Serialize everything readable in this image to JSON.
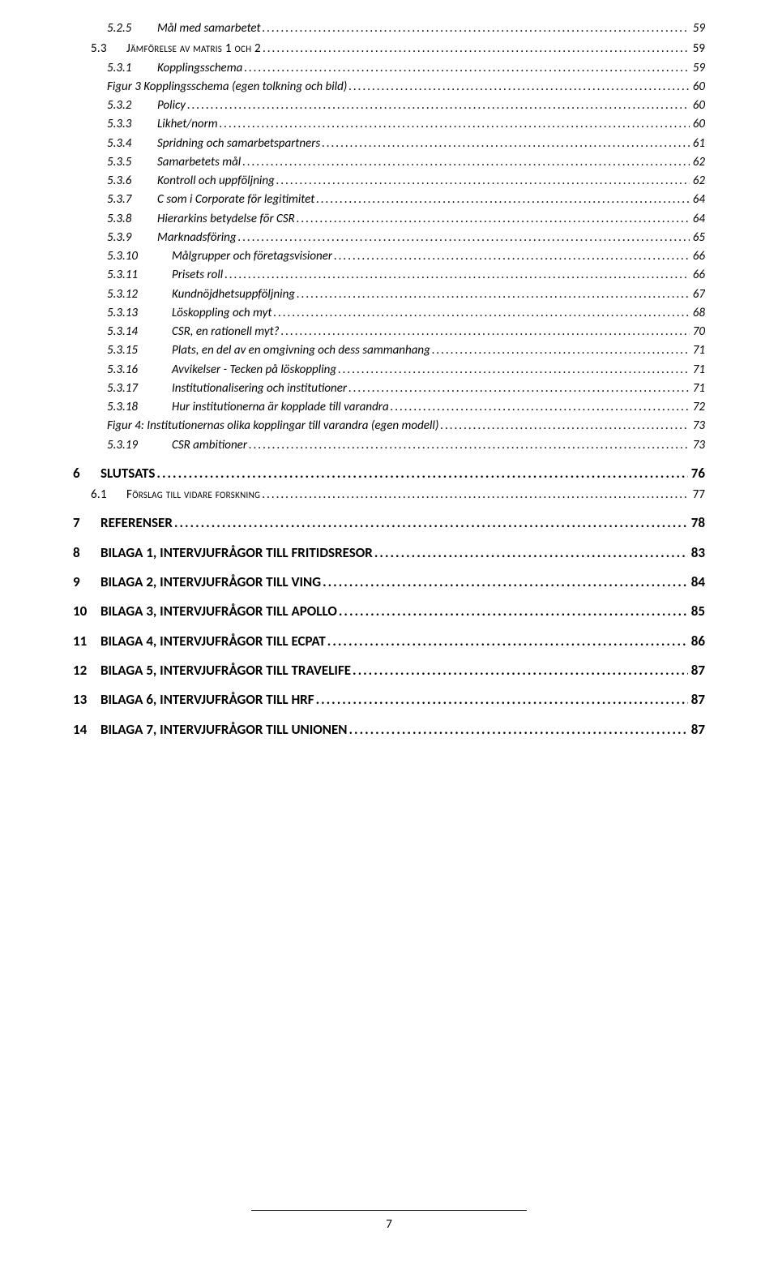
{
  "page_number": "7",
  "entries": [
    {
      "cls": "lvl3",
      "num": "5.2.5",
      "text": "Mål med samarbetet",
      "page": "59"
    },
    {
      "cls": "lvl2",
      "num": "5.3",
      "text": "Jämförelse av matris 1 och 2",
      "page": "59"
    },
    {
      "cls": "lvl3",
      "num": "5.3.1",
      "text": "Kopplingsschema",
      "page": "59"
    },
    {
      "cls": "fig",
      "num": "",
      "text": "Figur 3 Kopplingsschema (egen tolkning och bild)",
      "page": "60"
    },
    {
      "cls": "lvl3",
      "num": "5.3.2",
      "text": "Policy",
      "page": "60"
    },
    {
      "cls": "lvl3",
      "num": "5.3.3",
      "text": "Likhet/norm",
      "page": "60"
    },
    {
      "cls": "lvl3",
      "num": "5.3.4",
      "text": "Spridning och samarbetspartners",
      "page": "61"
    },
    {
      "cls": "lvl3",
      "num": "5.3.5",
      "text": "Samarbetets mål",
      "page": "62"
    },
    {
      "cls": "lvl3",
      "num": "5.3.6",
      "text": "Kontroll och uppföljning",
      "page": "62"
    },
    {
      "cls": "lvl3",
      "num": "5.3.7",
      "text": "C som i Corporate för legitimitet",
      "page": "64"
    },
    {
      "cls": "lvl3",
      "num": "5.3.8",
      "text": "Hierarkins betydelse för CSR",
      "page": "64"
    },
    {
      "cls": "lvl3",
      "num": "5.3.9",
      "text": "Marknadsföring",
      "page": "65"
    },
    {
      "cls": "lvl3wide",
      "num": "5.3.10",
      "text": "Målgrupper och företagsvisioner",
      "page": "66"
    },
    {
      "cls": "lvl3wide",
      "num": "5.3.11",
      "text": "Prisets roll",
      "page": "66"
    },
    {
      "cls": "lvl3wide",
      "num": "5.3.12",
      "text": "Kundnöjdhetsuppföljning",
      "page": "67"
    },
    {
      "cls": "lvl3wide",
      "num": "5.3.13",
      "text": "Löskoppling och myt",
      "page": "68"
    },
    {
      "cls": "lvl3wide",
      "num": "5.3.14",
      "text": "CSR, en rationell myt?",
      "page": "70"
    },
    {
      "cls": "lvl3wide",
      "num": "5.3.15",
      "text": "Plats, en del av en omgivning och dess sammanhang",
      "page": "71"
    },
    {
      "cls": "lvl3wide",
      "num": "5.3.16",
      "text": "Avvikelser - Tecken på löskoppling",
      "page": "71"
    },
    {
      "cls": "lvl3wide",
      "num": "5.3.17",
      "text": "Institutionalisering och institutioner",
      "page": "71"
    },
    {
      "cls": "lvl3wide",
      "num": "5.3.18",
      "text": "Hur institutionerna är kopplade till varandra",
      "page": "72"
    },
    {
      "cls": "fig",
      "num": "",
      "text": "Figur 4: Institutionernas olika kopplingar till varandra (egen modell)",
      "page": "73"
    },
    {
      "cls": "lvl3wide",
      "num": "5.3.19",
      "text": "CSR ambitioner",
      "page": "73"
    },
    {
      "cls": "lvl1",
      "num": "6",
      "text": "SLUTSATS",
      "page": "76"
    },
    {
      "cls": "lvl2",
      "num": "6.1",
      "text": "Förslag till vidare forskning",
      "page": "77"
    },
    {
      "cls": "lvl1",
      "num": "7",
      "text": "REFERENSER",
      "page": "78"
    },
    {
      "cls": "lvl1",
      "num": "8",
      "text": "BILAGA 1, INTERVJUFRÅGOR TILL FRITIDSRESOR",
      "page": "83"
    },
    {
      "cls": "lvl1",
      "num": "9",
      "text": "BILAGA 2, INTERVJUFRÅGOR TILL VING",
      "page": "84"
    },
    {
      "cls": "lvl1",
      "num": "10",
      "text": "BILAGA 3, INTERVJUFRÅGOR TILL APOLLO",
      "page": "85"
    },
    {
      "cls": "lvl1",
      "num": "11",
      "text": "BILAGA 4, INTERVJUFRÅGOR TILL ECPAT",
      "page": "86"
    },
    {
      "cls": "lvl1",
      "num": "12",
      "text": "BILAGA 5, INTERVJUFRÅGOR TILL TRAVELIFE",
      "page": "87"
    },
    {
      "cls": "lvl1",
      "num": "13",
      "text": "BILAGA 6, INTERVJUFRÅGOR TILL HRF",
      "page": "87"
    },
    {
      "cls": "lvl1",
      "num": "14",
      "text": "BILAGA 7, INTERVJUFRÅGOR TILL UNIONEN",
      "page": "87"
    }
  ]
}
